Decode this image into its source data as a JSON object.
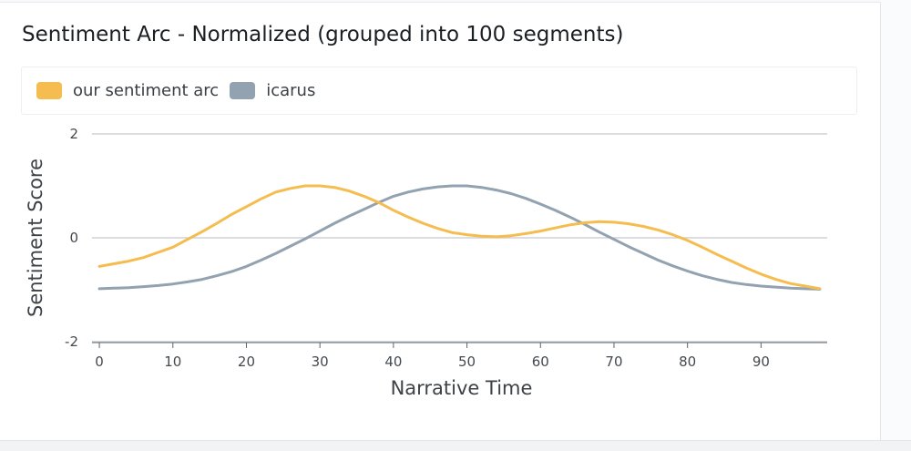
{
  "title": "Sentiment Arc - Normalized (grouped into 100 segments)",
  "colors": {
    "our_arc": "#f5bd4f",
    "icarus": "#92a2b0",
    "grid": "#cfd2d5",
    "axis": "#5e646a"
  },
  "chart_data": {
    "type": "line",
    "xlabel": "Narrative Time",
    "ylabel": "Sentiment Score",
    "xlim": [
      -1,
      99
    ],
    "ylim": [
      -2,
      2
    ],
    "xticks": [
      "0",
      "10",
      "20",
      "30",
      "40",
      "50",
      "60",
      "70",
      "80",
      "90"
    ],
    "yticks": [
      "-2",
      "0",
      "2"
    ],
    "grid": "horizontal",
    "legend": "top",
    "series": [
      {
        "name": "our sentiment arc",
        "color": "#f5bd4f",
        "x": [
          0,
          2,
          4,
          6,
          8,
          10,
          12,
          14,
          16,
          18,
          20,
          22,
          24,
          26,
          28,
          30,
          32,
          34,
          36,
          38,
          40,
          42,
          44,
          46,
          48,
          50,
          52,
          54,
          56,
          58,
          60,
          62,
          64,
          66,
          68,
          70,
          72,
          74,
          76,
          78,
          80,
          82,
          84,
          86,
          88,
          90,
          92,
          94,
          96,
          98
        ],
        "y": [
          -0.55,
          -0.5,
          -0.45,
          -0.38,
          -0.28,
          -0.18,
          -0.03,
          0.12,
          0.28,
          0.45,
          0.6,
          0.75,
          0.88,
          0.95,
          1.0,
          1.0,
          0.97,
          0.9,
          0.8,
          0.68,
          0.53,
          0.4,
          0.28,
          0.18,
          0.1,
          0.06,
          0.03,
          0.02,
          0.04,
          0.08,
          0.13,
          0.19,
          0.25,
          0.29,
          0.31,
          0.3,
          0.27,
          0.22,
          0.15,
          0.06,
          -0.05,
          -0.18,
          -0.32,
          -0.45,
          -0.58,
          -0.7,
          -0.8,
          -0.88,
          -0.93,
          -0.98
        ]
      },
      {
        "name": "icarus",
        "color": "#92a2b0",
        "x": [
          0,
          2,
          4,
          6,
          8,
          10,
          12,
          14,
          16,
          18,
          20,
          22,
          24,
          26,
          28,
          30,
          32,
          34,
          36,
          38,
          40,
          42,
          44,
          46,
          48,
          50,
          52,
          54,
          56,
          58,
          60,
          62,
          64,
          66,
          68,
          70,
          72,
          74,
          76,
          78,
          80,
          82,
          84,
          86,
          88,
          90,
          92,
          94,
          96,
          98
        ],
        "y": [
          -0.98,
          -0.97,
          -0.96,
          -0.94,
          -0.92,
          -0.89,
          -0.85,
          -0.8,
          -0.73,
          -0.65,
          -0.55,
          -0.43,
          -0.3,
          -0.16,
          -0.02,
          0.13,
          0.28,
          0.42,
          0.55,
          0.68,
          0.8,
          0.88,
          0.94,
          0.98,
          1.0,
          1.0,
          0.97,
          0.92,
          0.85,
          0.76,
          0.65,
          0.53,
          0.4,
          0.26,
          0.11,
          -0.03,
          -0.17,
          -0.3,
          -0.43,
          -0.54,
          -0.64,
          -0.73,
          -0.8,
          -0.86,
          -0.9,
          -0.93,
          -0.95,
          -0.97,
          -0.98,
          -0.99
        ]
      }
    ]
  }
}
